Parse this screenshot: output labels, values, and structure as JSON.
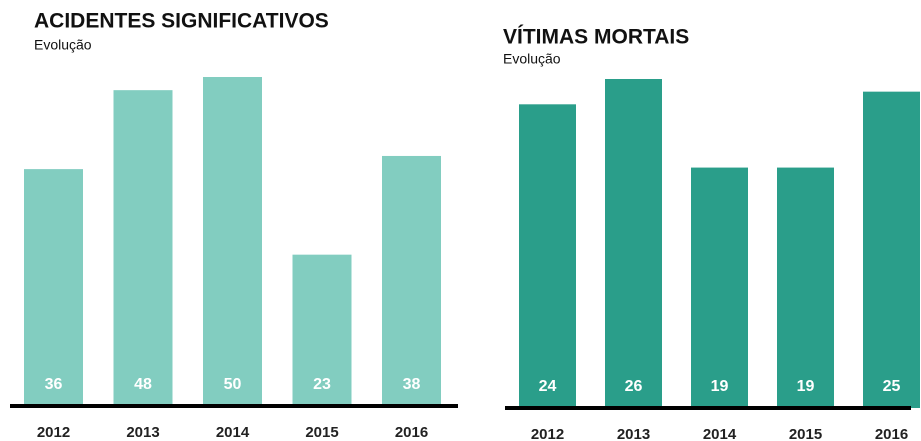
{
  "chart_data": [
    {
      "type": "bar",
      "title": "ACIDENTES SIGNIFICATIVOS",
      "subtitle": "Evolução",
      "categories": [
        "2012",
        "2013",
        "2014",
        "2015",
        "2016"
      ],
      "values": [
        36,
        48,
        50,
        23,
        38
      ],
      "color": "#82cdc0"
    },
    {
      "type": "bar",
      "title": "VÍTIMAS MORTAIS",
      "subtitle": "Evolução",
      "categories": [
        "2012",
        "2013",
        "2014",
        "2015",
        "2016"
      ],
      "values": [
        24,
        26,
        19,
        19,
        25
      ],
      "color": "#2a9e8a"
    }
  ]
}
